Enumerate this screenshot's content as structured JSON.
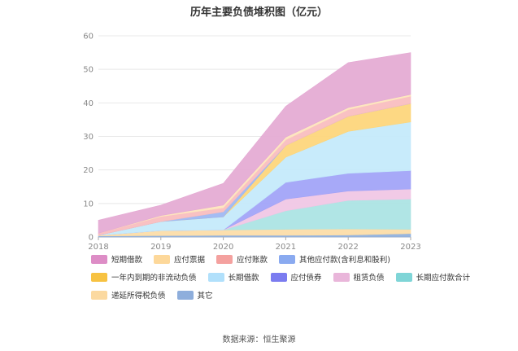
{
  "chart_data": {
    "type": "area",
    "stacked": true,
    "title": "历年主要负债堆积图（亿元）",
    "x": [
      "2018",
      "2019",
      "2020",
      "2021",
      "2022",
      "2023"
    ],
    "ylim": [
      0,
      60
    ],
    "yticks": [
      0,
      10,
      20,
      30,
      40,
      50,
      60
    ],
    "grid": true,
    "legend_position": "bottom",
    "series": [
      {
        "name": "其它",
        "color": "#8fb0dc",
        "values": [
          0.3,
          0.4,
          0.5,
          0.5,
          0.6,
          1.0
        ]
      },
      {
        "name": "递延所得税负债",
        "color": "#fcdca6",
        "values": [
          0.2,
          1.5,
          1.6,
          1.8,
          1.8,
          1.3
        ]
      },
      {
        "name": "长期应付款合计",
        "color": "#a9e3e3",
        "values": [
          0.0,
          0.0,
          0.0,
          5.5,
          8.5,
          9.0
        ]
      },
      {
        "name": "租赁负债",
        "color": "#f0c6e4",
        "values": [
          0.0,
          0.0,
          0.0,
          3.5,
          2.8,
          3.0
        ]
      },
      {
        "name": "应付债券",
        "color": "#a0a2f7",
        "values": [
          0.0,
          0.0,
          0.0,
          5.0,
          5.3,
          5.5
        ]
      },
      {
        "name": "长期借款",
        "color": "#c3e9fb",
        "values": [
          0.0,
          2.7,
          3.9,
          7.5,
          12.5,
          14.5
        ]
      },
      {
        "name": "一年内到期的非流动负债",
        "color": "#fdd578",
        "values": [
          0.0,
          0.0,
          0.0,
          3.5,
          4.5,
          5.5
        ]
      },
      {
        "name": "其他应付款(含利息和股利)",
        "color": "#9cb6f2",
        "values": [
          0.0,
          0.0,
          1.5,
          0.0,
          0.0,
          0.0
        ]
      },
      {
        "name": "应付账款",
        "color": "#f8bcbe",
        "values": [
          0.6,
          1.5,
          1.2,
          1.7,
          2.0,
          2.2
        ]
      },
      {
        "name": "应付票据",
        "color": "#fde4bc",
        "values": [
          0.0,
          0.3,
          0.8,
          0.8,
          0.6,
          0.5
        ]
      },
      {
        "name": "短期借款",
        "color": "#e4a9d3",
        "values": [
          3.9,
          3.1,
          6.5,
          9.2,
          13.4,
          12.5
        ]
      }
    ],
    "legend_order": [
      "短期借款",
      "应付票据",
      "应付账款",
      "其他应付款(含利息和股利)",
      "一年内到期的非流动负债",
      "长期借款",
      "应付债券",
      "租赁负债",
      "长期应付款合计",
      "递延所得税负债",
      "其它"
    ],
    "legend_colors": {
      "短期借款": "#dd8dc6",
      "应付票据": "#fdd89a",
      "应付账款": "#f4a19f",
      "其他应付款(含利息和股利)": "#8aaaf0",
      "一年内到期的非流动负债": "#f7c242",
      "长期借款": "#b1e0fb",
      "应付债券": "#7b7cf0",
      "租赁负债": "#e9b6da",
      "长期应付款合计": "#7fd5d7",
      "递延所得税负债": "#fbd9a0",
      "其它": "#8eaedc"
    }
  },
  "source": "数据来源：恒生聚源"
}
